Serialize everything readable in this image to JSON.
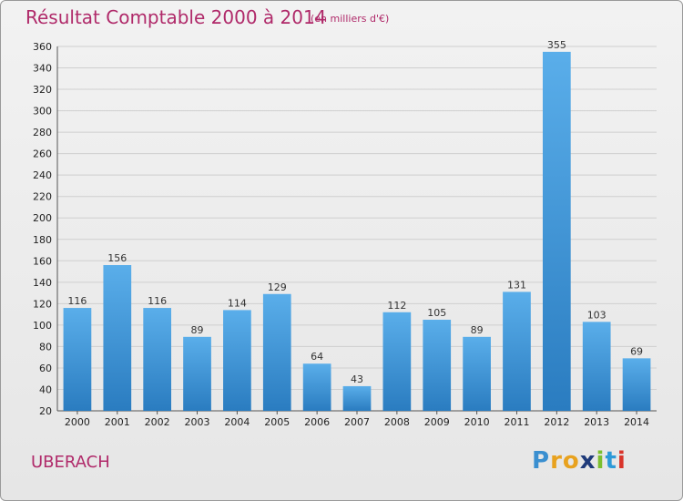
{
  "title": "Résultat Comptable 2000 à 2014",
  "subtitle": "(en milliers d'€)",
  "commune": "UBERACH",
  "logo_text": "Proxiti",
  "colors": {
    "bar": "#4aa0e0",
    "bar_dark": "#2a7cc0",
    "title": "#b02a6a"
  },
  "chart_data": {
    "type": "bar",
    "categories": [
      "2000",
      "2001",
      "2002",
      "2003",
      "2004",
      "2005",
      "2006",
      "2007",
      "2008",
      "2009",
      "2010",
      "2011",
      "2012",
      "2013",
      "2014"
    ],
    "values": [
      116,
      156,
      116,
      89,
      114,
      129,
      64,
      43,
      112,
      105,
      89,
      131,
      355,
      103,
      69
    ],
    "title": "Résultat Comptable 2000 à 2014",
    "subtitle": "(en milliers d'€)",
    "xlabel": "",
    "ylabel": "",
    "ylim": [
      20,
      360
    ],
    "yticks": [
      20,
      40,
      60,
      80,
      100,
      120,
      140,
      160,
      180,
      200,
      220,
      240,
      260,
      280,
      300,
      320,
      340,
      360
    ],
    "grid": true,
    "legend": "none"
  }
}
